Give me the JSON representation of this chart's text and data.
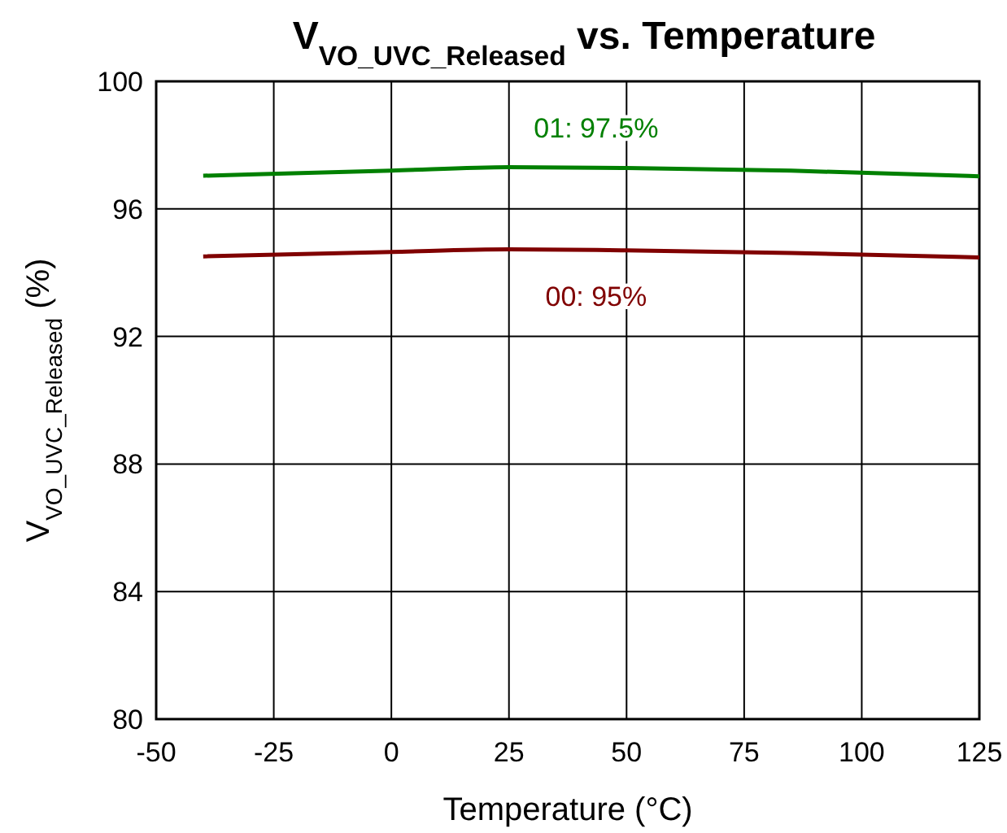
{
  "chart_data": {
    "type": "line",
    "title": "V$_{VO_UVC_Released}$ vs. Temperature",
    "xlabel": "Temperature (°C)",
    "ylabel": "V$_{VO_UVC_Released}$ (%)",
    "x": [
      -40,
      0,
      25,
      50,
      85,
      125
    ],
    "series": [
      {
        "name": "01: 97.5%",
        "color": "#008000",
        "values": [
          97.04,
          97.2,
          97.31,
          97.28,
          97.2,
          97.02
        ]
      },
      {
        "name": "00: 95%",
        "color": "#800000",
        "values": [
          94.51,
          94.65,
          94.73,
          94.7,
          94.62,
          94.48
        ]
      }
    ],
    "xlim": [
      -50,
      125
    ],
    "xticks": [
      -50,
      -25,
      0,
      25,
      50,
      75,
      100,
      125
    ],
    "ylim": [
      80,
      100
    ],
    "yticks": [
      80,
      84,
      88,
      92,
      96,
      100
    ],
    "grid": true,
    "marker": "none",
    "line_style": "solid"
  }
}
